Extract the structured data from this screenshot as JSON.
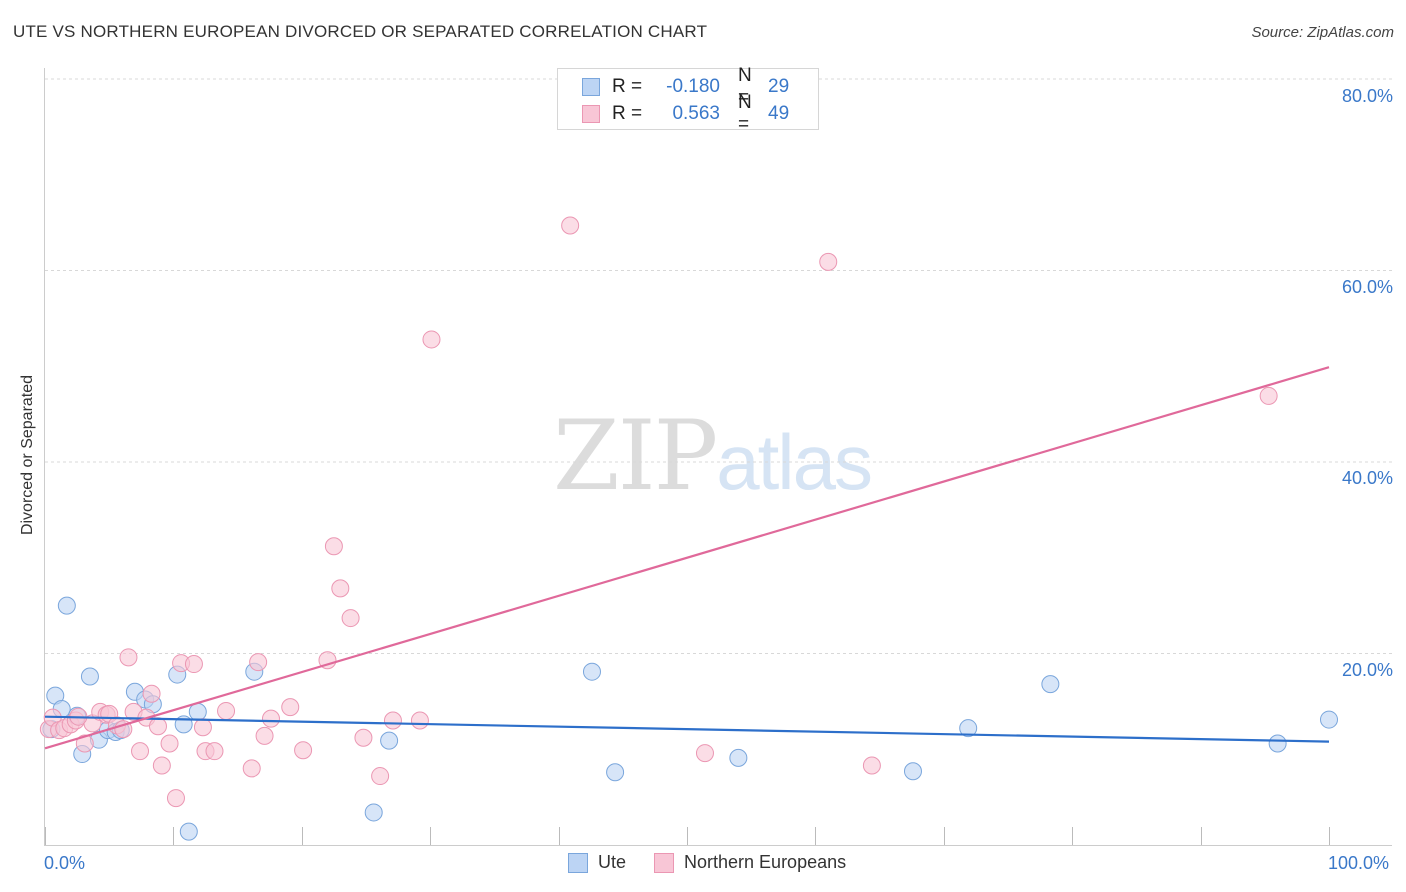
{
  "title": "UTE VS NORTHERN EUROPEAN DIVORCED OR SEPARATED CORRELATION CHART",
  "source": "Source: ZipAtlas.com",
  "watermark": {
    "part1": "ZIP",
    "part2": "atlas"
  },
  "legend_top": {
    "rows": [
      {
        "r_label": "R =",
        "r_value": "-0.180",
        "n_label": "N =",
        "n_value": "29"
      },
      {
        "r_label": "R =",
        "r_value": "0.563",
        "n_label": "N =",
        "n_value": "49"
      }
    ]
  },
  "legend_bottom": {
    "items": [
      "Ute",
      "Northern Europeans"
    ]
  },
  "axis_labels": {
    "x_left": "0.0%",
    "x_right": "100.0%",
    "y_ticks": [
      "80.0%",
      "60.0%",
      "40.0%",
      "20.0%"
    ]
  },
  "colors": {
    "ute_fill": "#bcd4f4",
    "ute_stroke": "#7aa6dc",
    "ute_line": "#2d6fca",
    "ne_fill": "#f8c6d6",
    "ne_stroke": "#eb97b3",
    "ne_line": "#e0699a",
    "grid": "#d8d8d8",
    "axis_text": "#3a78c9"
  },
  "chart_data": {
    "type": "scatter",
    "title": "UTE VS NORTHERN EUROPEAN DIVORCED OR SEPARATED CORRELATION CHART",
    "xlabel": "",
    "ylabel": "Divorced or Separated",
    "xlim": [
      0,
      100
    ],
    "ylim": [
      0,
      80
    ],
    "y_ticks": [
      20,
      40,
      60,
      80
    ],
    "grid": true,
    "legend": "bottom-center",
    "series": [
      {
        "name": "Ute",
        "r": -0.18,
        "n": 29,
        "trend": {
          "x": [
            0,
            100
          ],
          "y": [
            13.4,
            10.8
          ]
        },
        "points": [
          {
            "x": 0.5,
            "y": 12.1
          },
          {
            "x": 0.8,
            "y": 15.6
          },
          {
            "x": 1.3,
            "y": 14.2
          },
          {
            "x": 1.7,
            "y": 25.0
          },
          {
            "x": 2.5,
            "y": 13.5
          },
          {
            "x": 2.9,
            "y": 9.5
          },
          {
            "x": 3.5,
            "y": 17.6
          },
          {
            "x": 4.2,
            "y": 11.0
          },
          {
            "x": 4.9,
            "y": 12.0
          },
          {
            "x": 5.5,
            "y": 11.8
          },
          {
            "x": 7.0,
            "y": 16.0
          },
          {
            "x": 7.8,
            "y": 15.2
          },
          {
            "x": 8.4,
            "y": 14.7
          },
          {
            "x": 10.3,
            "y": 17.8
          },
          {
            "x": 10.8,
            "y": 12.6
          },
          {
            "x": 11.2,
            "y": 1.4
          },
          {
            "x": 11.9,
            "y": 13.9
          },
          {
            "x": 16.3,
            "y": 18.1
          },
          {
            "x": 25.6,
            "y": 3.4
          },
          {
            "x": 26.8,
            "y": 10.9
          },
          {
            "x": 42.6,
            "y": 18.1
          },
          {
            "x": 44.4,
            "y": 7.6
          },
          {
            "x": 54.0,
            "y": 9.1
          },
          {
            "x": 67.6,
            "y": 7.7
          },
          {
            "x": 71.9,
            "y": 12.2
          },
          {
            "x": 78.3,
            "y": 16.8
          },
          {
            "x": 96.0,
            "y": 10.6
          },
          {
            "x": 100.0,
            "y": 13.1
          },
          {
            "x": 5.9,
            "y": 12.0
          }
        ]
      },
      {
        "name": "Northern Europeans",
        "r": 0.563,
        "n": 49,
        "trend": {
          "x": [
            0,
            100
          ],
          "y": [
            10.1,
            49.9
          ]
        },
        "points": [
          {
            "x": 0.3,
            "y": 12.1
          },
          {
            "x": 0.6,
            "y": 13.3
          },
          {
            "x": 1.1,
            "y": 12.0
          },
          {
            "x": 1.5,
            "y": 12.2
          },
          {
            "x": 2.0,
            "y": 12.6
          },
          {
            "x": 2.4,
            "y": 13.0
          },
          {
            "x": 3.1,
            "y": 10.6
          },
          {
            "x": 3.7,
            "y": 12.7
          },
          {
            "x": 4.3,
            "y": 13.9
          },
          {
            "x": 4.8,
            "y": 13.6
          },
          {
            "x": 5.0,
            "y": 13.7
          },
          {
            "x": 5.6,
            "y": 12.5
          },
          {
            "x": 6.1,
            "y": 12.1
          },
          {
            "x": 6.5,
            "y": 19.6
          },
          {
            "x": 6.9,
            "y": 13.9
          },
          {
            "x": 7.4,
            "y": 9.8
          },
          {
            "x": 7.9,
            "y": 13.3
          },
          {
            "x": 8.3,
            "y": 15.8
          },
          {
            "x": 8.8,
            "y": 12.4
          },
          {
            "x": 9.1,
            "y": 8.3
          },
          {
            "x": 9.7,
            "y": 10.6
          },
          {
            "x": 10.2,
            "y": 4.9
          },
          {
            "x": 10.6,
            "y": 19.0
          },
          {
            "x": 11.6,
            "y": 18.9
          },
          {
            "x": 12.3,
            "y": 12.3
          },
          {
            "x": 12.5,
            "y": 9.8
          },
          {
            "x": 13.2,
            "y": 9.8
          },
          {
            "x": 14.1,
            "y": 14.0
          },
          {
            "x": 16.1,
            "y": 8.0
          },
          {
            "x": 16.6,
            "y": 19.1
          },
          {
            "x": 17.1,
            "y": 11.4
          },
          {
            "x": 17.6,
            "y": 13.2
          },
          {
            "x": 19.1,
            "y": 14.4
          },
          {
            "x": 20.1,
            "y": 9.9
          },
          {
            "x": 22.0,
            "y": 19.3
          },
          {
            "x": 22.5,
            "y": 31.2
          },
          {
            "x": 23.0,
            "y": 26.8
          },
          {
            "x": 23.8,
            "y": 23.7
          },
          {
            "x": 24.8,
            "y": 11.2
          },
          {
            "x": 26.1,
            "y": 7.2
          },
          {
            "x": 27.1,
            "y": 13.0
          },
          {
            "x": 29.2,
            "y": 13.0
          },
          {
            "x": 30.1,
            "y": 52.8
          },
          {
            "x": 40.9,
            "y": 64.7
          },
          {
            "x": 51.4,
            "y": 9.6
          },
          {
            "x": 61.0,
            "y": 60.9
          },
          {
            "x": 64.4,
            "y": 8.3
          },
          {
            "x": 95.3,
            "y": 46.9
          },
          {
            "x": 2.6,
            "y": 13.4
          }
        ]
      }
    ]
  }
}
